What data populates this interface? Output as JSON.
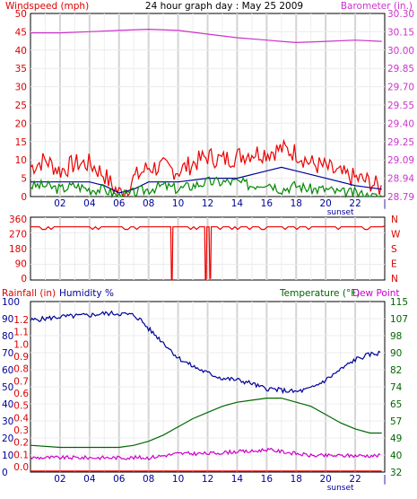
{
  "chart_data": [
    {
      "type": "line",
      "title": "24 hour graph day : May 25 2009",
      "left_label": "Windspeed (mph)",
      "right_label": "Barometer (in.)",
      "x_ticks": [
        "02",
        "04",
        "06",
        "08",
        "10",
        "12",
        "14",
        "16",
        "18",
        "20",
        "22",
        "|"
      ],
      "x_range": [
        0,
        24
      ],
      "sunset_label": "sunset",
      "sunset_hour": 20.7,
      "grid": true,
      "ylim_left": [
        0,
        50
      ],
      "yticks_left": [
        "50",
        "45",
        "40",
        "35",
        "30",
        "25",
        "20",
        "15",
        "10",
        "5",
        "0"
      ],
      "ylim_right": [
        28.79,
        30.3
      ],
      "yticks_right": [
        "30.30",
        "30.15",
        "30.00",
        "29.85",
        "29.70",
        "29.55",
        "29.40",
        "29.25",
        "29.09",
        "28.94",
        "28.79"
      ],
      "series": [
        {
          "axis": "right",
          "color": "#cc33cc",
          "x": [
            0,
            2,
            4,
            6,
            8,
            10,
            12,
            14,
            16,
            17,
            18,
            20,
            22,
            23.8
          ],
          "y": [
            30.14,
            30.14,
            30.15,
            30.16,
            30.17,
            30.16,
            30.13,
            30.1,
            30.08,
            30.07,
            30.06,
            30.07,
            30.08,
            30.07
          ]
        },
        {
          "axis": "left",
          "color": "#ee0000",
          "x": [
            0,
            1,
            2,
            3,
            4,
            5,
            5.5,
            6,
            6.5,
            7,
            8,
            9,
            10,
            11,
            12,
            13,
            14,
            15,
            16,
            17,
            18,
            19,
            20,
            21,
            22,
            23,
            23.8
          ],
          "y": [
            8,
            10,
            7,
            9,
            9,
            6,
            3,
            1,
            2,
            5,
            8,
            8,
            7,
            9,
            11,
            10,
            11,
            12,
            12,
            13,
            12,
            9,
            8,
            6,
            5,
            4,
            2
          ]
        },
        {
          "axis": "left",
          "color": "#000099",
          "x": [
            0,
            2,
            4,
            5,
            6,
            7,
            8,
            10,
            12,
            14,
            16,
            17,
            18,
            20,
            22,
            23.8
          ],
          "y": [
            4,
            4,
            4,
            3,
            1,
            2,
            4,
            4,
            5,
            5,
            7,
            8,
            7,
            5,
            3,
            2
          ]
        },
        {
          "axis": "left",
          "color": "#008800",
          "x": [
            0,
            1,
            2,
            3,
            4,
            5,
            5.5,
            6,
            7,
            8,
            9,
            10,
            11,
            12,
            13,
            14,
            15,
            16,
            17,
            18,
            19,
            20,
            21,
            22,
            23,
            23.8
          ],
          "y": [
            3,
            3,
            2,
            3,
            2,
            2,
            1,
            0,
            1,
            2,
            3,
            2,
            3,
            4,
            4,
            4,
            3,
            4,
            2,
            3,
            2,
            2,
            1,
            1,
            0,
            0
          ]
        }
      ]
    },
    {
      "type": "line",
      "ylim": [
        0,
        360
      ],
      "yticks_left": [
        "360",
        "270",
        "180",
        "90",
        "0"
      ],
      "yticks_right": [
        "N",
        "W",
        "S",
        "E",
        "N"
      ],
      "x_ticks": [
        "02",
        "04",
        "06",
        "08",
        "10",
        "12",
        "14",
        "16",
        "18",
        "20",
        "22",
        "|"
      ],
      "sunset_label": "sunset",
      "series": [
        {
          "color": "#ee0000",
          "x": [
            0,
            9.5,
            9.55,
            9.6,
            9.65,
            11.8,
            11.85,
            11.9,
            11.95,
            12.1,
            12.15,
            12.2,
            12.25,
            24
          ],
          "y": [
            305,
            305,
            0,
            0,
            305,
            305,
            0,
            0,
            305,
            305,
            10,
            10,
            305,
            310
          ]
        }
      ]
    },
    {
      "type": "line",
      "left_label_rain": "Rainfall (in)",
      "left_label_humidity": "Humidity %",
      "right_label_temp": "Temperature (°F)",
      "right_label_dew": "Dew Point",
      "x_ticks": [
        "02",
        "04",
        "06",
        "08",
        "10",
        "12",
        "14",
        "16",
        "18",
        "20",
        "22",
        "|"
      ],
      "sunset_label": "sunset",
      "ylim_humidity": [
        0,
        100
      ],
      "yticks_humidity": [
        "100",
        "90",
        "80",
        "70",
        "60",
        "50",
        "40",
        "30",
        "20",
        "10",
        "0"
      ],
      "yticks_rain": [
        "1.2",
        "1.1",
        "1.0",
        "0.9",
        "0.8",
        "0.7",
        "0.6",
        "0.5",
        "0.4",
        "0.3",
        "0.2",
        "0.1",
        "0.0"
      ],
      "ylim_temp": [
        32,
        115
      ],
      "yticks_temp": [
        "115",
        "107",
        "98",
        "90",
        "82",
        "74",
        "65",
        "57",
        "49",
        "40",
        "32"
      ],
      "series": [
        {
          "name": "Humidity %",
          "axis": "humidity",
          "color": "#000099",
          "x": [
            0,
            2,
            4,
            5,
            6,
            7,
            7.5,
            8,
            9,
            10,
            11,
            12,
            13,
            14,
            15,
            15.5,
            16,
            17,
            18,
            19,
            20,
            21,
            22,
            23,
            23.8
          ],
          "y": [
            89,
            91,
            92,
            93,
            93,
            92,
            89,
            84,
            76,
            67,
            62,
            58,
            55,
            54,
            52,
            50,
            49,
            48,
            47,
            49,
            54,
            60,
            66,
            69,
            70
          ]
        },
        {
          "name": "Temperature (°F)",
          "axis": "temp",
          "color": "#006600",
          "x": [
            0,
            2,
            4,
            6,
            7,
            8,
            9,
            10,
            11,
            12,
            13,
            14,
            15,
            16,
            17,
            18,
            19,
            20,
            21,
            22,
            23,
            23.8
          ],
          "y": [
            45,
            44,
            44,
            44,
            45,
            47,
            50,
            54,
            58,
            61,
            64,
            66,
            67,
            68,
            68,
            66,
            64,
            60,
            56,
            53,
            51,
            51
          ]
        },
        {
          "name": "Dew Point",
          "axis": "temp",
          "color": "#cc00cc",
          "x": [
            0,
            2,
            4,
            6,
            7,
            8,
            9,
            10,
            12,
            14,
            15,
            16,
            17,
            18,
            19,
            20,
            21,
            22,
            23,
            23.8
          ],
          "y": [
            39,
            39,
            39,
            39,
            39,
            39,
            40,
            41,
            41,
            42,
            42,
            43,
            42,
            41,
            40,
            40,
            40,
            40,
            40,
            40
          ]
        },
        {
          "name": "Rainfall (in)",
          "axis": "rain",
          "color": "#ee0000",
          "x": [
            0,
            23.8
          ],
          "y": [
            0,
            0
          ]
        }
      ]
    }
  ]
}
